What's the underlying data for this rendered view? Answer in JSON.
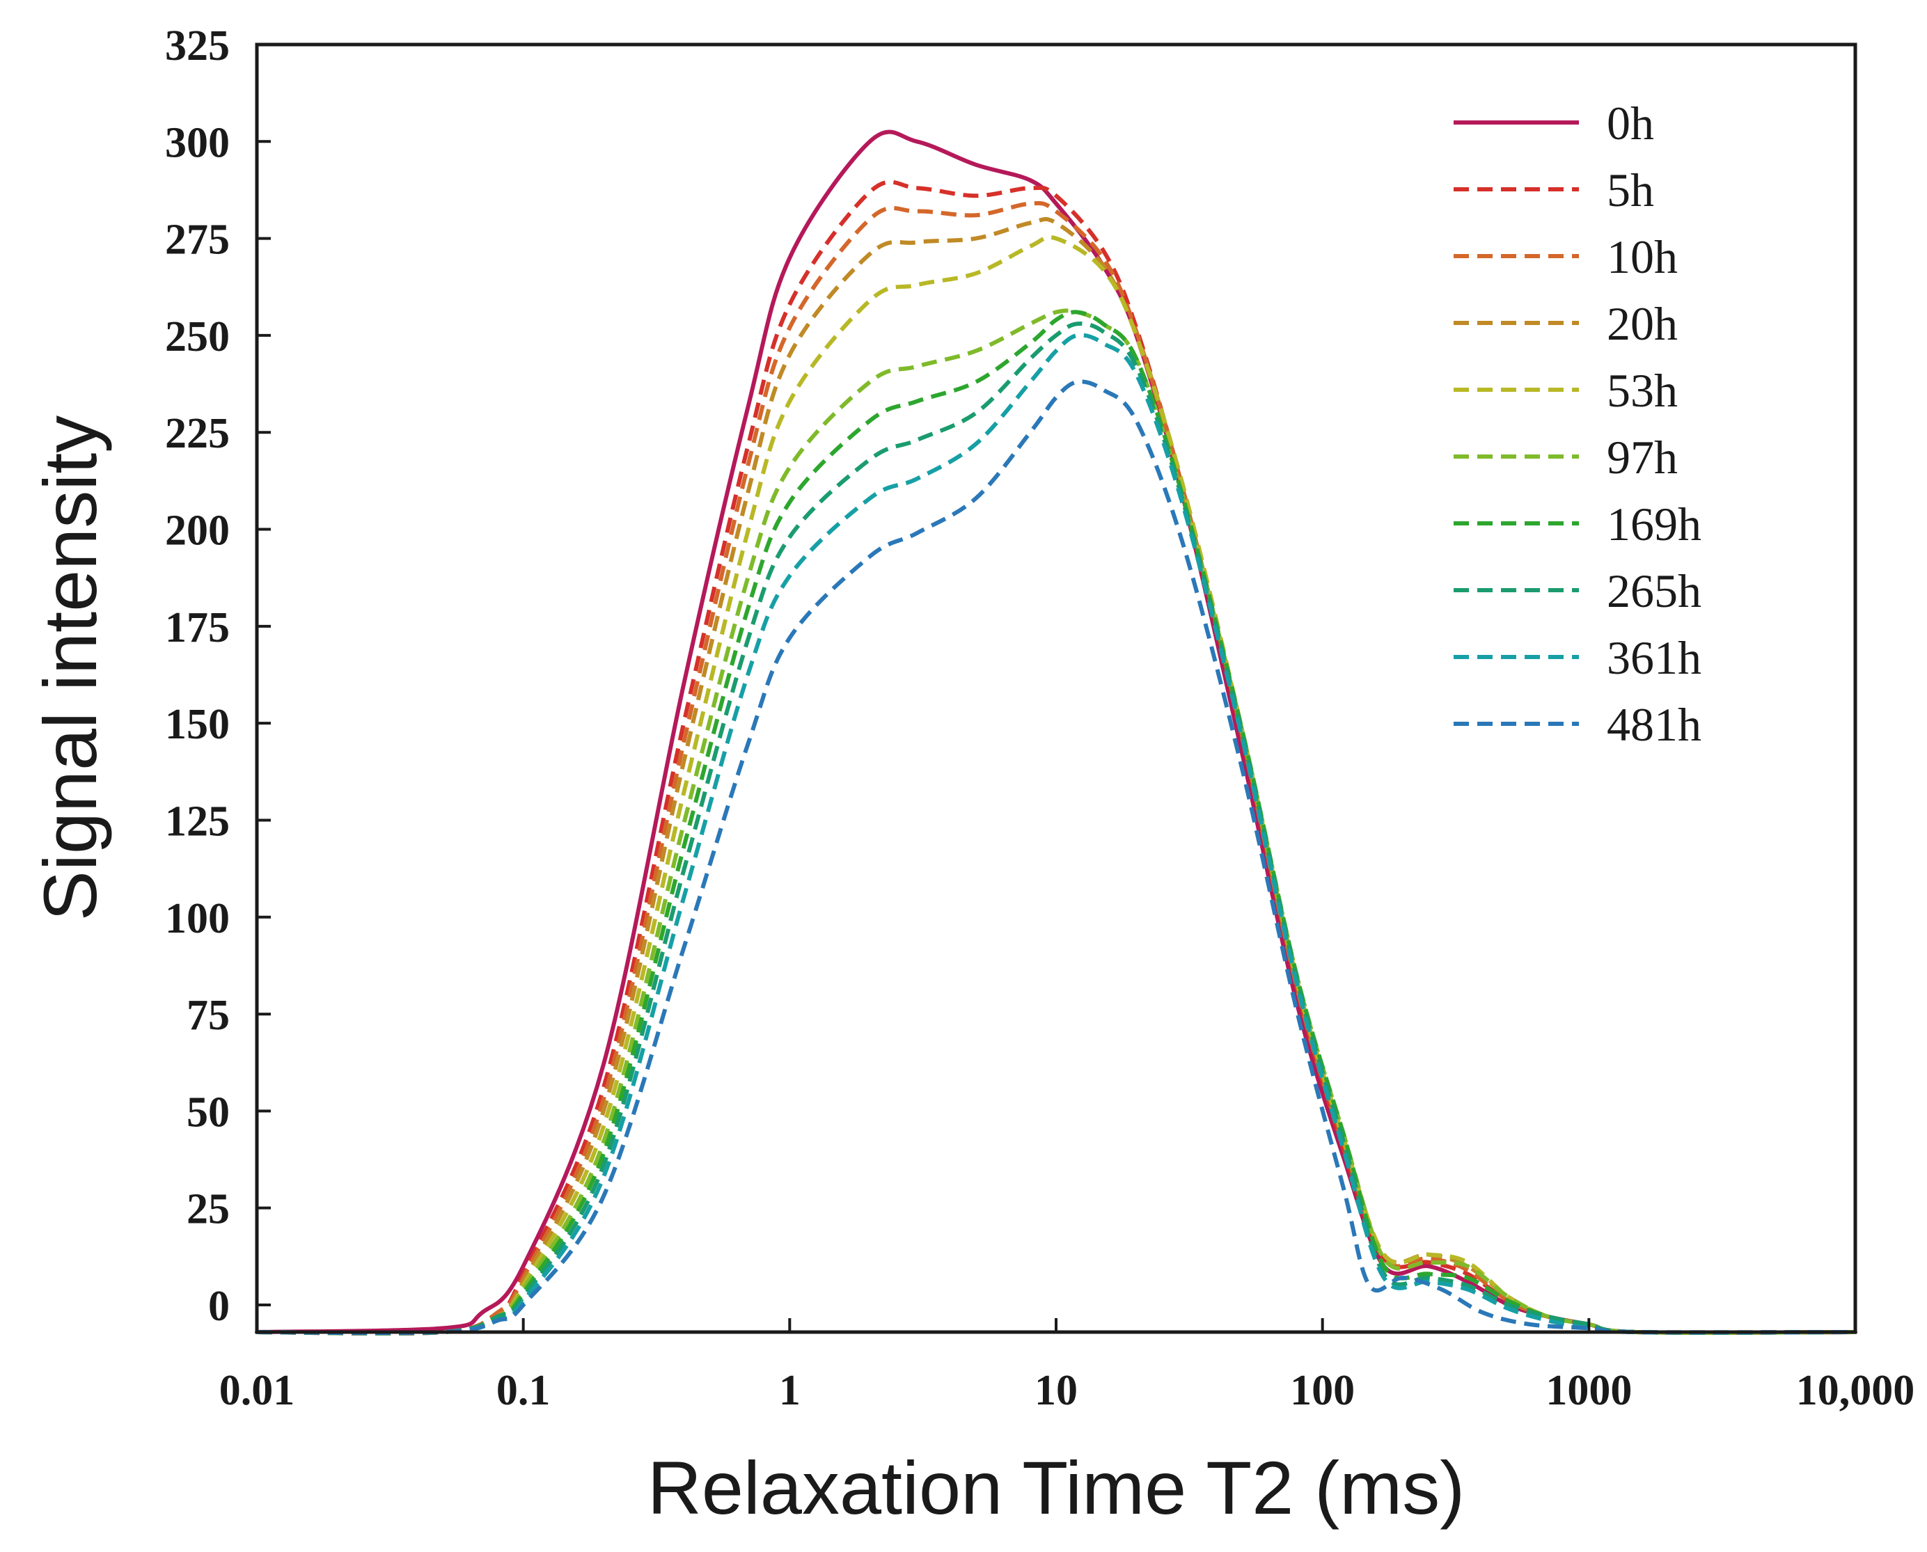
{
  "chart_data": {
    "type": "line",
    "x_scale": "log",
    "xlabel": "Relaxation Time T2 (ms)",
    "ylabel": "Signal intensity",
    "xlim": [
      0.01,
      10000
    ],
    "ylim": [
      -7,
      325
    ],
    "x_ticks": [
      {
        "value": 0.01,
        "label": "0.01"
      },
      {
        "value": 0.1,
        "label": "0.1"
      },
      {
        "value": 1,
        "label": "1"
      },
      {
        "value": 10,
        "label": "10"
      },
      {
        "value": 100,
        "label": "100"
      },
      {
        "value": 1000,
        "label": "1000"
      },
      {
        "value": 10000,
        "label": "10,000"
      }
    ],
    "y_ticks": [
      {
        "value": 0,
        "label": "0"
      },
      {
        "value": 25,
        "label": "25"
      },
      {
        "value": 50,
        "label": "50"
      },
      {
        "value": 75,
        "label": "75"
      },
      {
        "value": 100,
        "label": "100"
      },
      {
        "value": 125,
        "label": "125"
      },
      {
        "value": 150,
        "label": "150"
      },
      {
        "value": 175,
        "label": "175"
      },
      {
        "value": 200,
        "label": "200"
      },
      {
        "value": 225,
        "label": "225"
      },
      {
        "value": 250,
        "label": "250"
      },
      {
        "value": 275,
        "label": "275"
      },
      {
        "value": 300,
        "label": "300"
      },
      {
        "value": 325,
        "label": "325"
      }
    ],
    "legend_position": "top-right",
    "series": [
      {
        "name": "0h",
        "color": "#b5195a",
        "style": "solid",
        "x": [
          0.01,
          0.05,
          0.07,
          0.1,
          0.2,
          0.4,
          0.7,
          1,
          2,
          3,
          5,
          8,
          10,
          15,
          20,
          30,
          50,
          80,
          120,
          170,
          250,
          350,
          500,
          700,
          1000,
          1500,
          10000
        ],
        "y": [
          -7,
          -6,
          -2,
          10,
          62,
          160,
          232,
          270,
          300,
          300,
          294,
          290,
          284,
          268,
          250,
          208,
          142,
          78,
          38,
          10,
          10,
          6,
          0,
          -3,
          -5,
          -7,
          -7
        ]
      },
      {
        "name": "5h",
        "color": "#d6302a",
        "style": "dashed",
        "x": [
          0.01,
          0.05,
          0.08,
          0.1,
          0.2,
          0.4,
          0.7,
          1,
          2,
          3,
          5,
          8,
          10,
          15,
          20,
          30,
          50,
          80,
          120,
          170,
          250,
          350,
          500,
          700,
          1000,
          1500,
          10000
        ],
        "y": [
          -7,
          -7,
          -2,
          8,
          56,
          150,
          222,
          258,
          287,
          288,
          286,
          288,
          286,
          272,
          252,
          210,
          146,
          82,
          40,
          12,
          11,
          8,
          1,
          -3,
          -5,
          -7,
          -7
        ]
      },
      {
        "name": "10h",
        "color": "#d4672a",
        "style": "dashed",
        "x": [
          0.01,
          0.05,
          0.08,
          0.1,
          0.2,
          0.4,
          0.7,
          1,
          2,
          3,
          5,
          8,
          10,
          15,
          20,
          30,
          50,
          80,
          120,
          170,
          250,
          350,
          500,
          700,
          1000,
          1500,
          10000
        ],
        "y": [
          -7,
          -7,
          -2,
          7,
          53,
          145,
          217,
          252,
          280,
          282,
          281,
          284,
          282,
          270,
          251,
          210,
          146,
          82,
          41,
          12,
          12,
          9,
          1,
          -3,
          -5,
          -7,
          -7
        ]
      },
      {
        "name": "20h",
        "color": "#c08a25",
        "style": "dashed",
        "x": [
          0.01,
          0.05,
          0.08,
          0.1,
          0.2,
          0.4,
          0.7,
          1,
          2,
          3,
          5,
          8,
          10,
          15,
          20,
          30,
          50,
          80,
          120,
          170,
          250,
          350,
          500,
          700,
          1000,
          1500,
          10000
        ],
        "y": [
          -7,
          -7,
          -3,
          6,
          50,
          140,
          210,
          245,
          271,
          274,
          275,
          279,
          279,
          268,
          250,
          210,
          147,
          83,
          42,
          13,
          13,
          10,
          2,
          -3,
          -5,
          -7,
          -7
        ]
      },
      {
        "name": "53h",
        "color": "#b8b826",
        "style": "dashed",
        "x": [
          0.01,
          0.05,
          0.08,
          0.1,
          0.2,
          0.4,
          0.7,
          1,
          2,
          3,
          5,
          8,
          10,
          15,
          20,
          30,
          50,
          80,
          120,
          170,
          250,
          350,
          500,
          700,
          1000,
          1500,
          10000
        ],
        "y": [
          -7,
          -7,
          -3,
          5,
          46,
          132,
          200,
          233,
          259,
          263,
          266,
          273,
          275,
          267,
          250,
          211,
          148,
          84,
          43,
          13,
          13,
          11,
          2,
          -3,
          -5,
          -7,
          -7
        ]
      },
      {
        "name": "97h",
        "color": "#7fba2a",
        "style": "dashed",
        "x": [
          0.01,
          0.05,
          0.08,
          0.1,
          0.2,
          0.4,
          0.7,
          1,
          2,
          3,
          5,
          8,
          10,
          12,
          15,
          20,
          30,
          50,
          80,
          120,
          170,
          250,
          350,
          500,
          700,
          1000,
          1500,
          10000
        ],
        "y": [
          -7,
          -7,
          -3,
          4,
          42,
          124,
          188,
          216,
          238,
          242,
          246,
          253,
          256,
          256,
          253,
          244,
          208,
          148,
          85,
          44,
          12,
          11,
          10,
          2,
          -3,
          -5,
          -7,
          -7
        ]
      },
      {
        "name": "169h",
        "color": "#2da62e",
        "style": "dashed",
        "x": [
          0.01,
          0.05,
          0.08,
          0.1,
          0.2,
          0.4,
          0.7,
          1,
          2,
          3,
          5,
          8,
          10,
          12,
          15,
          20,
          30,
          50,
          80,
          120,
          170,
          250,
          350,
          500,
          700,
          1000,
          1500,
          10000
        ],
        "y": [
          -7,
          -7,
          -3,
          3,
          39,
          118,
          180,
          207,
          228,
          233,
          238,
          248,
          254,
          256,
          253,
          244,
          208,
          148,
          85,
          44,
          10,
          8,
          7,
          1,
          -3,
          -5,
          -7,
          -7
        ]
      },
      {
        "name": "265h",
        "color": "#1a9c6e",
        "style": "dashed",
        "x": [
          0.01,
          0.05,
          0.08,
          0.1,
          0.2,
          0.4,
          0.7,
          1,
          2,
          3,
          5,
          8,
          10,
          12,
          15,
          20,
          30,
          50,
          80,
          120,
          170,
          250,
          350,
          500,
          700,
          1000,
          1500,
          10000
        ],
        "y": [
          -7,
          -7,
          -3,
          2,
          36,
          112,
          172,
          198,
          218,
          223,
          230,
          244,
          250,
          253,
          251,
          242,
          207,
          147,
          84,
          42,
          8,
          7,
          5,
          0,
          -3,
          -5,
          -7,
          -7
        ]
      },
      {
        "name": "361h",
        "color": "#16a0a6",
        "style": "dashed",
        "x": [
          0.01,
          0.05,
          0.08,
          0.1,
          0.2,
          0.4,
          0.7,
          1,
          2,
          3,
          5,
          8,
          10,
          12,
          15,
          20,
          30,
          50,
          80,
          120,
          170,
          250,
          350,
          500,
          700,
          1000,
          1500,
          10000
        ],
        "y": [
          -7,
          -7,
          -4,
          1,
          33,
          105,
          163,
          188,
          208,
          213,
          222,
          238,
          246,
          250,
          248,
          240,
          206,
          146,
          83,
          40,
          7,
          6,
          4,
          -1,
          -4,
          -6,
          -7,
          -7
        ]
      },
      {
        "name": "481h",
        "color": "#2a78b8",
        "style": "dashed",
        "x": [
          0.01,
          0.05,
          0.08,
          0.1,
          0.2,
          0.4,
          0.7,
          1,
          2,
          3,
          5,
          8,
          10,
          12,
          15,
          20,
          30,
          50,
          80,
          120,
          150,
          200,
          280,
          400,
          600,
          1000,
          1500,
          10000
        ],
        "y": [
          -7,
          -7,
          -4,
          0,
          28,
          92,
          145,
          172,
          193,
          199,
          208,
          225,
          234,
          238,
          236,
          228,
          196,
          138,
          76,
          30,
          5,
          7,
          4,
          -2,
          -5,
          -6,
          -7,
          -7
        ]
      }
    ]
  }
}
